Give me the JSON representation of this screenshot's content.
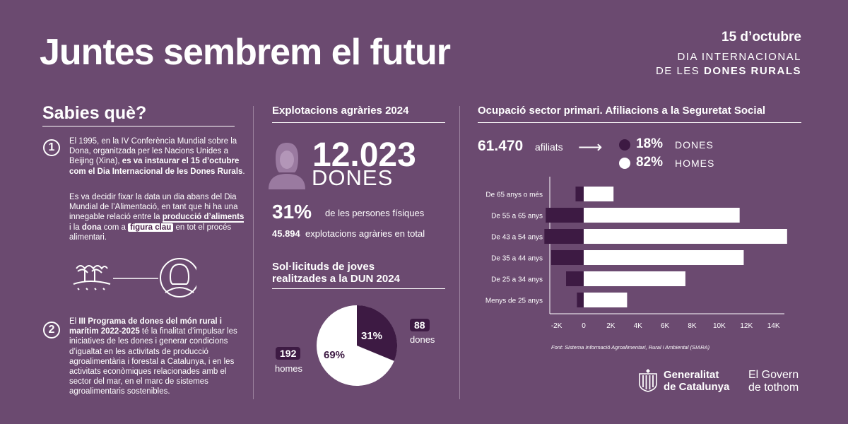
{
  "header": {
    "title": "Juntes sembrem el futur",
    "date": "15 d’octubre",
    "day_line1": "DIA INTERNACIONAL",
    "day_line2_prefix": "DE LES ",
    "day_line2_bold": "DONES RURALS"
  },
  "sabies": {
    "title": "Sabies què?",
    "item1_number": "1",
    "item1_intro": "El 1995, en la IV Conferència Mundial sobre la Dona, organitzada per les Nacions Unides a Beijing (Xina), ",
    "item1_bold": "es va instaurar el 15 d’octubre com el Dia Internacional de les Dones Rurals",
    "item1_end": ".",
    "item1_p2_a": "Es va decidir fixar la data un dia abans del Dia Mundial de l’Alimentació, en tant que hi ha una innegable relació entre la ",
    "item1_p2_bold1": "producció d’aliments",
    "item1_p2_b": " i la ",
    "item1_p2_bold2": "dona",
    "item1_p2_c": " com a ",
    "item1_p2_tag": "figura clau",
    "item1_p2_d": " en tot el procés alimentari.",
    "item2_number": "2",
    "item2_a": "El ",
    "item2_bold": "III Programa de dones del món rural i marítim 2022-2025",
    "item2_b": " té la finalitat d’impulsar les iniciatives de les dones i generar condicions d’igualtat en les activitats de producció agroalimentària i forestal a Catalunya, i en les activitats econòmiques relacionades amb el sector del mar, en el marc de sistemes agroalimentaris sostenibles."
  },
  "explotacions": {
    "title": "Explotacions agràries 2024",
    "women_count": "12.023",
    "women_label": "DONES",
    "percent": "31%",
    "percent_label": "de les persones físiques",
    "total": "45.894",
    "total_label": "explotacions agràries en total"
  },
  "dun": {
    "title_line1": "Sol·licituds de joves",
    "title_line2": "realitzades a la DUN 2024",
    "women_value": "88",
    "women_label": "dones",
    "men_value": "192",
    "men_label": "homes",
    "women_pct": "31%",
    "men_pct": "69%"
  },
  "ocupacio": {
    "title": "Ocupació sector primari. Afiliacions a la Seguretat Social",
    "affiliates": "61.470",
    "affiliates_label": "afiliats",
    "women_pct": "18%",
    "women_label": "DONES",
    "men_pct": "82%",
    "men_label": "HOMES",
    "source": "Font: Sistema Informació Agroalimentari, Rural i Ambiental (SIARA)"
  },
  "chart_data": {
    "type": "bar",
    "orientation": "horizontal",
    "title": "Ocupació sector primari. Afiliacions a la Seguretat Social",
    "categories": [
      "De 65 anys o més",
      "De 55 a 65 anys",
      "De 43 a 54 anys",
      "De 35 a 44 anys",
      "De 25 a 34 anys",
      "Menys de 25 anys"
    ],
    "series": [
      {
        "name": "Dones",
        "color": "#3d1a43",
        "values": [
          -600,
          -2800,
          -2900,
          -2400,
          -1300,
          -500
        ]
      },
      {
        "name": "Homes",
        "color": "#ffffff",
        "values": [
          2200,
          11500,
          15000,
          11800,
          7500,
          3200
        ]
      }
    ],
    "xlim": [
      -2500,
      14800
    ],
    "xticks": [
      -2000,
      0,
      2000,
      4000,
      6000,
      8000,
      10000,
      12000,
      14000
    ],
    "xtick_labels": [
      "-2K",
      "0",
      "2K",
      "4K",
      "6K",
      "8K",
      "10K",
      "12K",
      "14K"
    ]
  },
  "footer": {
    "gencat_line1": "Generalitat",
    "gencat_line2": "de Catalunya",
    "govern_line1": "El Govern",
    "govern_line2": "de tothom"
  },
  "colors": {
    "background": "#6b4a70",
    "dark": "#3d1a43",
    "light": "#ffffff"
  }
}
